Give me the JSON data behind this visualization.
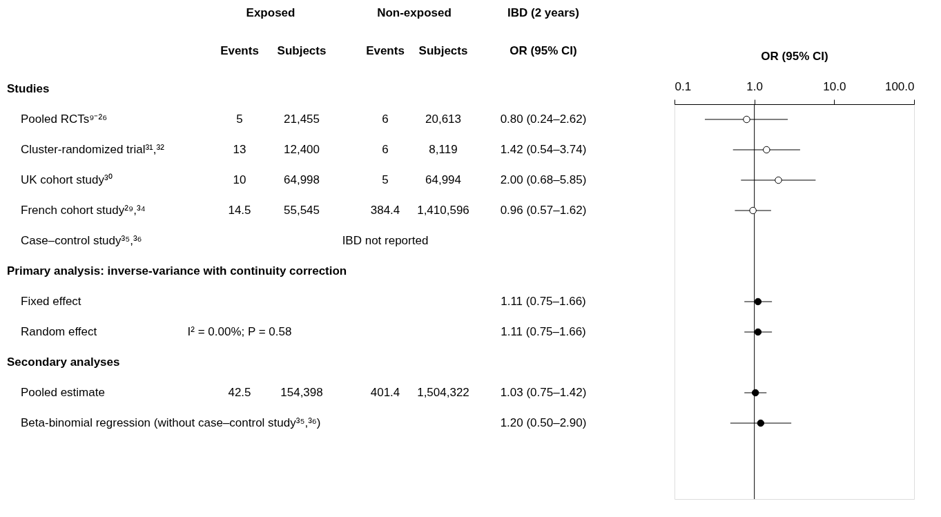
{
  "chart_data": [
    {
      "type": "other",
      "annotations": [
        "Exposed",
        "Non-exposed",
        "IBD (2 years)"
      ],
      "categories": [
        "Events",
        "Subjects",
        "Events",
        "Subjects",
        "OR (95% CI)"
      ],
      "y_categories": [
        "Studies",
        "Pooled RCTs⁹⁻²⁶",
        "Cluster-randomized trial³¹,³²",
        "UK cohort study³⁰",
        "French cohort study²⁹,³⁴",
        "Case–control study³⁵,³⁶",
        "Primary analysis: inverse-variance with continuity correction",
        "Fixed effect",
        "Random effect",
        "Secondary analyses",
        "Pooled estimate",
        "Beta-binomial regression (without case–control study³⁵,³⁶)"
      ],
      "cell_labels": [
        null,
        [
          "5",
          "21,455",
          "6",
          "20,613",
          "0.80 (0.24–2.62)"
        ],
        [
          "13",
          "12,400",
          "6",
          "8,119",
          "1.42 (0.54–3.74)"
        ],
        [
          "10",
          "64,998",
          "5",
          "64,994",
          "2.00 (0.68–5.85)"
        ],
        [
          "14.5",
          "55,545",
          "384.4",
          "1,410,596",
          "0.96 (0.57–1.62)"
        ],
        [
          null,
          null,
          "IBD not reported",
          null,
          null
        ],
        null,
        [
          null,
          null,
          null,
          null,
          "1.11 (0.75–1.66)"
        ],
        [
          "I² = 0.00%; P = 0.58",
          null,
          null,
          null,
          "1.11 (0.75–1.66)"
        ],
        null,
        [
          "42.5",
          "154,398",
          "401.4",
          "1,504,322",
          "1.03 (0.75–1.42)"
        ],
        [
          null,
          null,
          null,
          null,
          "1.20 (0.50–2.90)"
        ]
      ]
    },
    {
      "type": "scatter",
      "orientation": "horizontal",
      "marker": "circle",
      "categories": [
        null,
        null,
        null,
        null,
        null,
        null,
        null,
        null,
        null,
        null,
        null,
        null,
        null
      ],
      "xlabel": "OR (95% CI)",
      "log": "x",
      "xlim": [
        0.1,
        100
      ],
      "xticks": [
        {
          "value": 0.1,
          "label": "0.1"
        },
        {
          "value": 1,
          "label": "1.0"
        },
        {
          "value": 10,
          "label": "10.0"
        },
        {
          "value": 100,
          "label": "100.0"
        }
      ],
      "ref_lines": [
        {
          "axis": "x",
          "value": 1,
          "color": "#000000"
        }
      ],
      "series": [
        {
          "color": "#ffffff",
          "values": [
            0.8,
            1.42,
            2.0,
            0.96,
            null,
            null,
            null,
            null,
            null,
            null,
            null,
            null,
            null
          ],
          "errors": [
            [
              0.24,
              2.62
            ],
            [
              0.54,
              3.74
            ],
            [
              0.68,
              5.85
            ],
            [
              0.57,
              1.62
            ],
            null,
            null,
            null,
            null,
            null,
            null,
            null,
            null,
            null
          ]
        },
        {
          "color": "#000000",
          "values": [
            null,
            null,
            null,
            null,
            null,
            null,
            1.11,
            1.11,
            null,
            1.03,
            1.2,
            null,
            null
          ],
          "errors": [
            null,
            null,
            null,
            null,
            null,
            null,
            [
              0.75,
              1.66
            ],
            [
              0.75,
              1.66
            ],
            null,
            [
              0.75,
              1.42
            ],
            [
              0.5,
              2.9
            ],
            null,
            null
          ]
        }
      ]
    }
  ]
}
